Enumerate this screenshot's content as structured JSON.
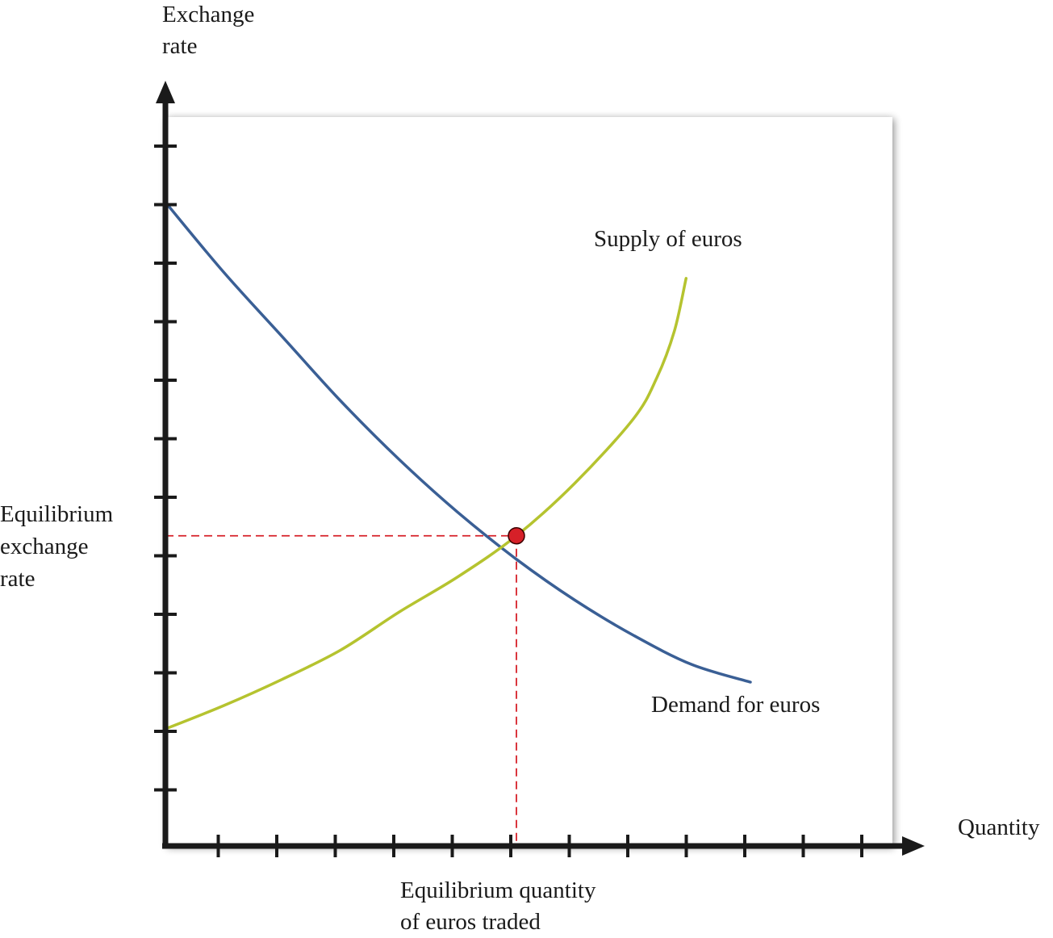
{
  "chart_data": {
    "type": "line",
    "title": "",
    "xlabel": "Quantity",
    "ylabel": [
      "Exchange",
      "rate"
    ],
    "x_tick_count": 12,
    "y_tick_count": 12,
    "xlim": [
      0,
      12.3
    ],
    "ylim": [
      0,
      12.6
    ],
    "grid": false,
    "series": [
      {
        "name": "Demand for euros",
        "color": "#3a5f95",
        "points": [
          [
            0,
            11
          ],
          [
            1,
            9.8
          ],
          [
            2,
            8.7
          ],
          [
            3,
            7.6
          ],
          [
            4,
            6.6
          ],
          [
            5,
            5.7
          ],
          [
            6,
            4.9
          ],
          [
            7,
            4.2
          ],
          [
            8,
            3.6
          ],
          [
            9,
            3.1
          ],
          [
            10,
            2.8
          ]
        ]
      },
      {
        "name": "Supply of euros",
        "color": "#b5c32f",
        "points": [
          [
            0,
            2
          ],
          [
            1,
            2.4
          ],
          [
            2,
            2.85
          ],
          [
            3,
            3.35
          ],
          [
            4,
            4
          ],
          [
            5,
            4.6
          ],
          [
            6,
            5.3
          ],
          [
            7,
            6.2
          ],
          [
            8,
            7.3
          ],
          [
            8.4,
            8
          ],
          [
            8.7,
            8.8
          ],
          [
            8.9,
            9.7
          ]
        ]
      }
    ],
    "equilibrium": {
      "x": 6,
      "y": 5.3,
      "point_color": "#d62028",
      "guide_color": "#d62028",
      "x_label": [
        "Equilibrium quantity",
        "of euros traded"
      ],
      "y_label": [
        "Equilibrium",
        "exchange",
        "rate"
      ]
    }
  }
}
